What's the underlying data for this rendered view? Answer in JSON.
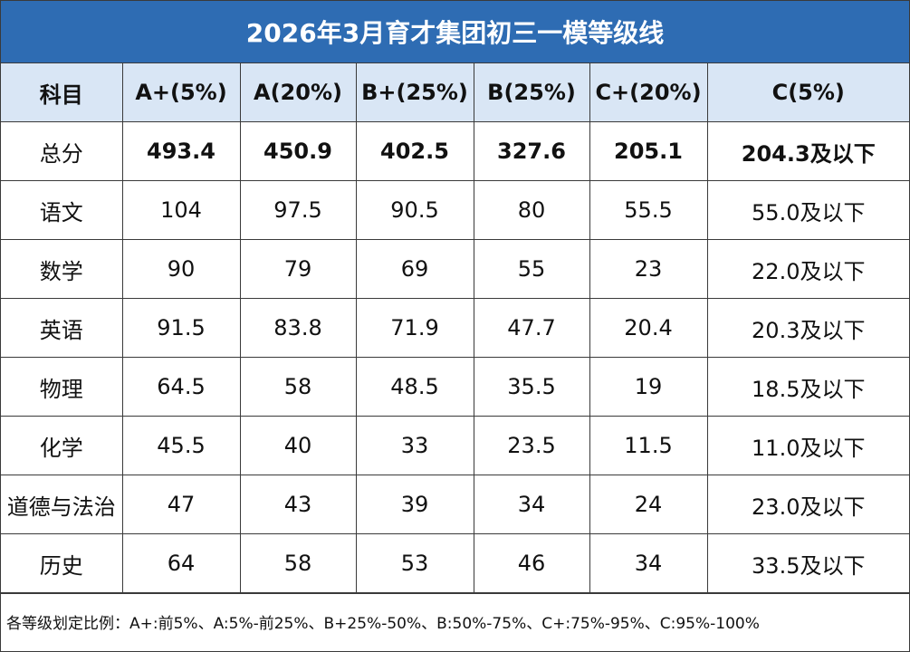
{
  "title": "2026年3月育才集团初三一模等级线",
  "header": [
    "科目",
    "A+(5%)",
    "A(20%)",
    "B+(25%)",
    "B(25%)",
    "C+(20%)",
    "C(5%)"
  ],
  "rows": [
    {
      "subject": "总分",
      "values": [
        "493.4",
        "450.9",
        "402.5",
        "327.6",
        "205.1",
        "204.3及以下"
      ],
      "highlight": true
    },
    {
      "subject": "语文",
      "values": [
        "104",
        "97.5",
        "90.5",
        "80",
        "55.5",
        "55.0及以下"
      ],
      "highlight": false
    },
    {
      "subject": "数学",
      "values": [
        "90",
        "79",
        "69",
        "55",
        "23",
        "22.0及以下"
      ],
      "highlight": false
    },
    {
      "subject": "英语",
      "values": [
        "91.5",
        "83.8",
        "71.9",
        "47.7",
        "20.4",
        "20.3及以下"
      ],
      "highlight": false
    },
    {
      "subject": "物理",
      "values": [
        "64.5",
        "58",
        "48.5",
        "35.5",
        "19",
        "18.5及以下"
      ],
      "highlight": false
    },
    {
      "subject": "化学",
      "values": [
        "45.5",
        "40",
        "33",
        "23.5",
        "11.5",
        "11.0及以下"
      ],
      "highlight": false
    },
    {
      "subject": "道德与法治",
      "values": [
        "47",
        "43",
        "39",
        "34",
        "24",
        "23.0及以下"
      ],
      "highlight": false
    },
    {
      "subject": "历史",
      "values": [
        "64",
        "58",
        "53",
        "46",
        "34",
        "33.5及以下"
      ],
      "highlight": false
    }
  ],
  "footnote": "各等级划定比例：A+:前5%、A:5%-前25%、B+25%-50%、B:50%-75%、C+:75%-95%、C:95%-100%",
  "colors": {
    "title_bg": "#2e6cb3",
    "header_bg": "#d9e6f5",
    "highlight_text": "#c8272d"
  }
}
